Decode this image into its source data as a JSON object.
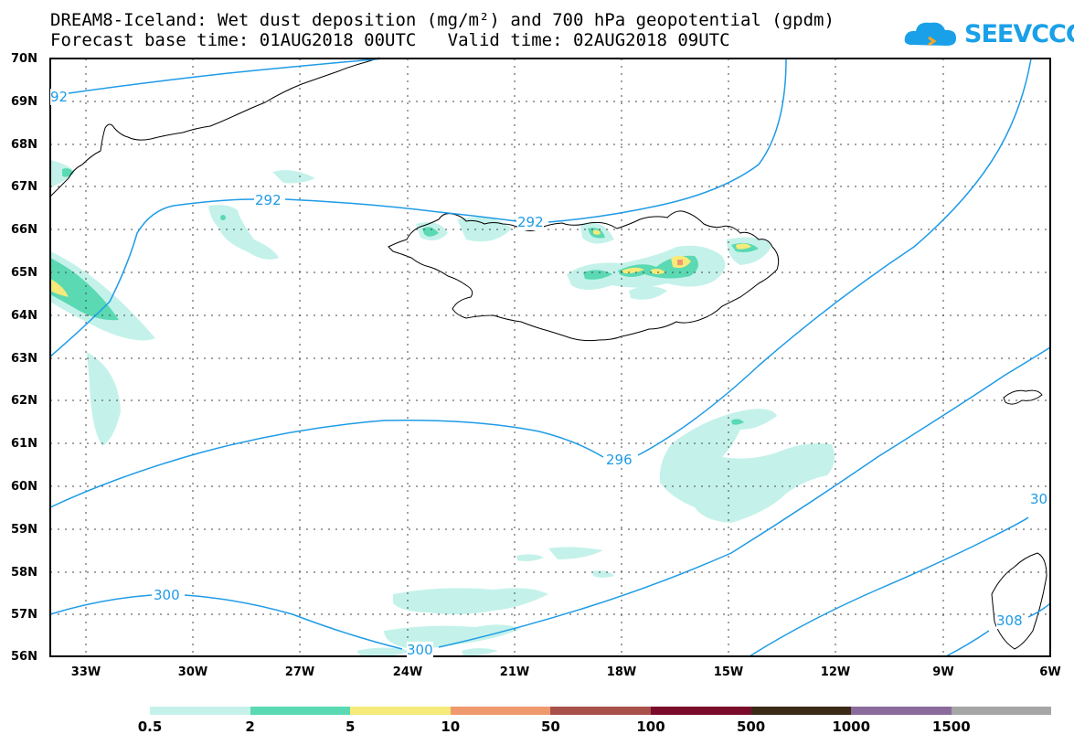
{
  "title": {
    "line1": "DREAM8-Iceland: Wet dust deposition (mg/m²) and 700 hPa geopotential (gpdm)",
    "line2": "Forecast base time: 01AUG2018 00UTC   Valid time: 02AUG2018 09UTC"
  },
  "logo": {
    "text": "SEEVCCC",
    "icon": "cloud-icon",
    "color": "#1aa0e8"
  },
  "axes": {
    "lat_labels": [
      "70N",
      "69N",
      "68N",
      "67N",
      "66N",
      "65N",
      "64N",
      "63N",
      "62N",
      "61N",
      "60N",
      "59N",
      "58N",
      "57N",
      "56N"
    ],
    "lon_labels": [
      "33W",
      "30W",
      "27W",
      "24W",
      "21W",
      "18W",
      "15W",
      "12W",
      "9W",
      "6W"
    ]
  },
  "contours": {
    "color": "#1e9be6",
    "labels": [
      "92",
      "292",
      "292",
      "296",
      "300",
      "300",
      "308",
      "30"
    ]
  },
  "colorbar": {
    "colors": [
      "#c4f2ea",
      "#5ad9b3",
      "#f5ea7a",
      "#ee9a6e",
      "#a8504a",
      "#7a0b2a",
      "#3a2a16",
      "#8b6a9c",
      "#a6a6a6"
    ],
    "labels": [
      "0.5",
      "2",
      "5",
      "10",
      "50",
      "100",
      "500",
      "1000",
      "1500"
    ]
  }
}
